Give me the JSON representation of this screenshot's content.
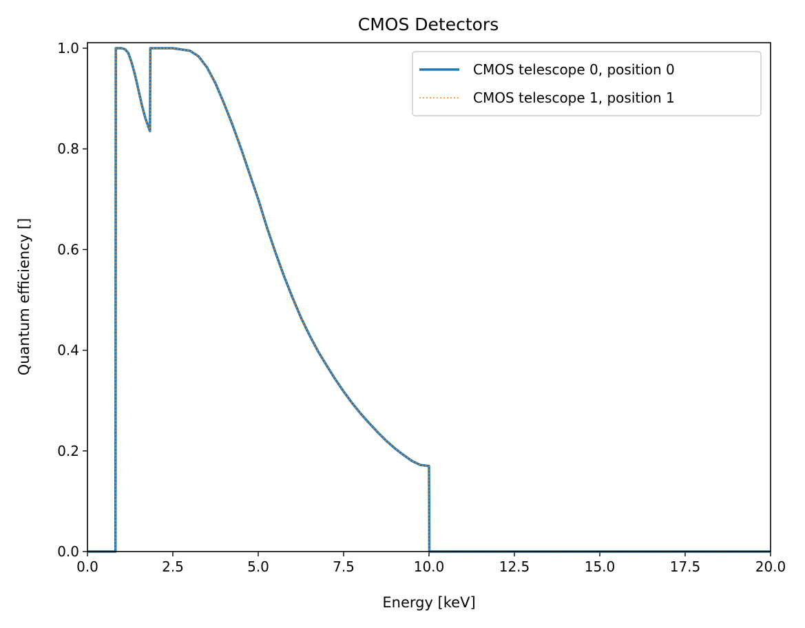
{
  "chart_data": {
    "type": "line",
    "title": "CMOS Detectors",
    "xlabel": "Energy [keV]",
    "ylabel": "Quantum efficiency []",
    "xlim": [
      0.0,
      20.0
    ],
    "ylim": [
      0.0,
      1.0
    ],
    "xticks": [
      "0.0",
      "2.5",
      "5.0",
      "7.5",
      "10.0",
      "12.5",
      "15.0",
      "17.5",
      "20.0"
    ],
    "yticks": [
      "0.0",
      "0.2",
      "0.4",
      "0.6",
      "0.8",
      "1.0"
    ],
    "legend_position": "top-right",
    "grid": false,
    "series": [
      {
        "name": "CMOS telescope 0, position 0",
        "color": "#1f77b4",
        "style": "solid",
        "x": [
          0.0,
          0.82,
          0.83,
          0.9,
          1.0,
          1.1,
          1.2,
          1.3,
          1.4,
          1.5,
          1.6,
          1.7,
          1.83,
          1.84,
          2.0,
          2.5,
          3.0,
          3.25,
          3.5,
          3.75,
          4.0,
          4.25,
          4.5,
          4.75,
          5.0,
          5.25,
          5.5,
          5.75,
          6.0,
          6.25,
          6.5,
          6.75,
          7.0,
          7.25,
          7.5,
          7.75,
          8.0,
          8.25,
          8.5,
          8.75,
          9.0,
          9.25,
          9.5,
          9.75,
          10.0,
          10.01,
          20.0
        ],
        "y": [
          0.0,
          0.0,
          1.0,
          1.0,
          1.0,
          0.998,
          0.99,
          0.97,
          0.945,
          0.915,
          0.885,
          0.86,
          0.835,
          1.0,
          1.0,
          1.0,
          0.995,
          0.984,
          0.962,
          0.93,
          0.89,
          0.847,
          0.8,
          0.75,
          0.7,
          0.645,
          0.595,
          0.548,
          0.505,
          0.465,
          0.43,
          0.398,
          0.37,
          0.343,
          0.318,
          0.295,
          0.274,
          0.255,
          0.237,
          0.22,
          0.205,
          0.192,
          0.18,
          0.172,
          0.17,
          0.0,
          0.0
        ]
      },
      {
        "name": "CMOS telescope 1, position 1",
        "color": "#ff7f0e",
        "style": "dotted",
        "x": [
          0.0,
          0.82,
          0.83,
          0.9,
          1.0,
          1.1,
          1.2,
          1.3,
          1.4,
          1.5,
          1.6,
          1.7,
          1.83,
          1.84,
          2.0,
          2.5,
          3.0,
          3.25,
          3.5,
          3.75,
          4.0,
          4.25,
          4.5,
          4.75,
          5.0,
          5.25,
          5.5,
          5.75,
          6.0,
          6.25,
          6.5,
          6.75,
          7.0,
          7.25,
          7.5,
          7.75,
          8.0,
          8.25,
          8.5,
          8.75,
          9.0,
          9.25,
          9.5,
          9.75,
          10.0,
          10.01,
          20.0
        ],
        "y": [
          0.0,
          0.0,
          1.0,
          1.0,
          1.0,
          0.998,
          0.99,
          0.97,
          0.945,
          0.915,
          0.885,
          0.86,
          0.835,
          1.0,
          1.0,
          1.0,
          0.995,
          0.984,
          0.962,
          0.93,
          0.89,
          0.847,
          0.8,
          0.75,
          0.7,
          0.645,
          0.595,
          0.548,
          0.505,
          0.465,
          0.43,
          0.398,
          0.37,
          0.343,
          0.318,
          0.295,
          0.274,
          0.255,
          0.237,
          0.22,
          0.205,
          0.192,
          0.18,
          0.172,
          0.17,
          0.0,
          0.0
        ]
      }
    ]
  }
}
